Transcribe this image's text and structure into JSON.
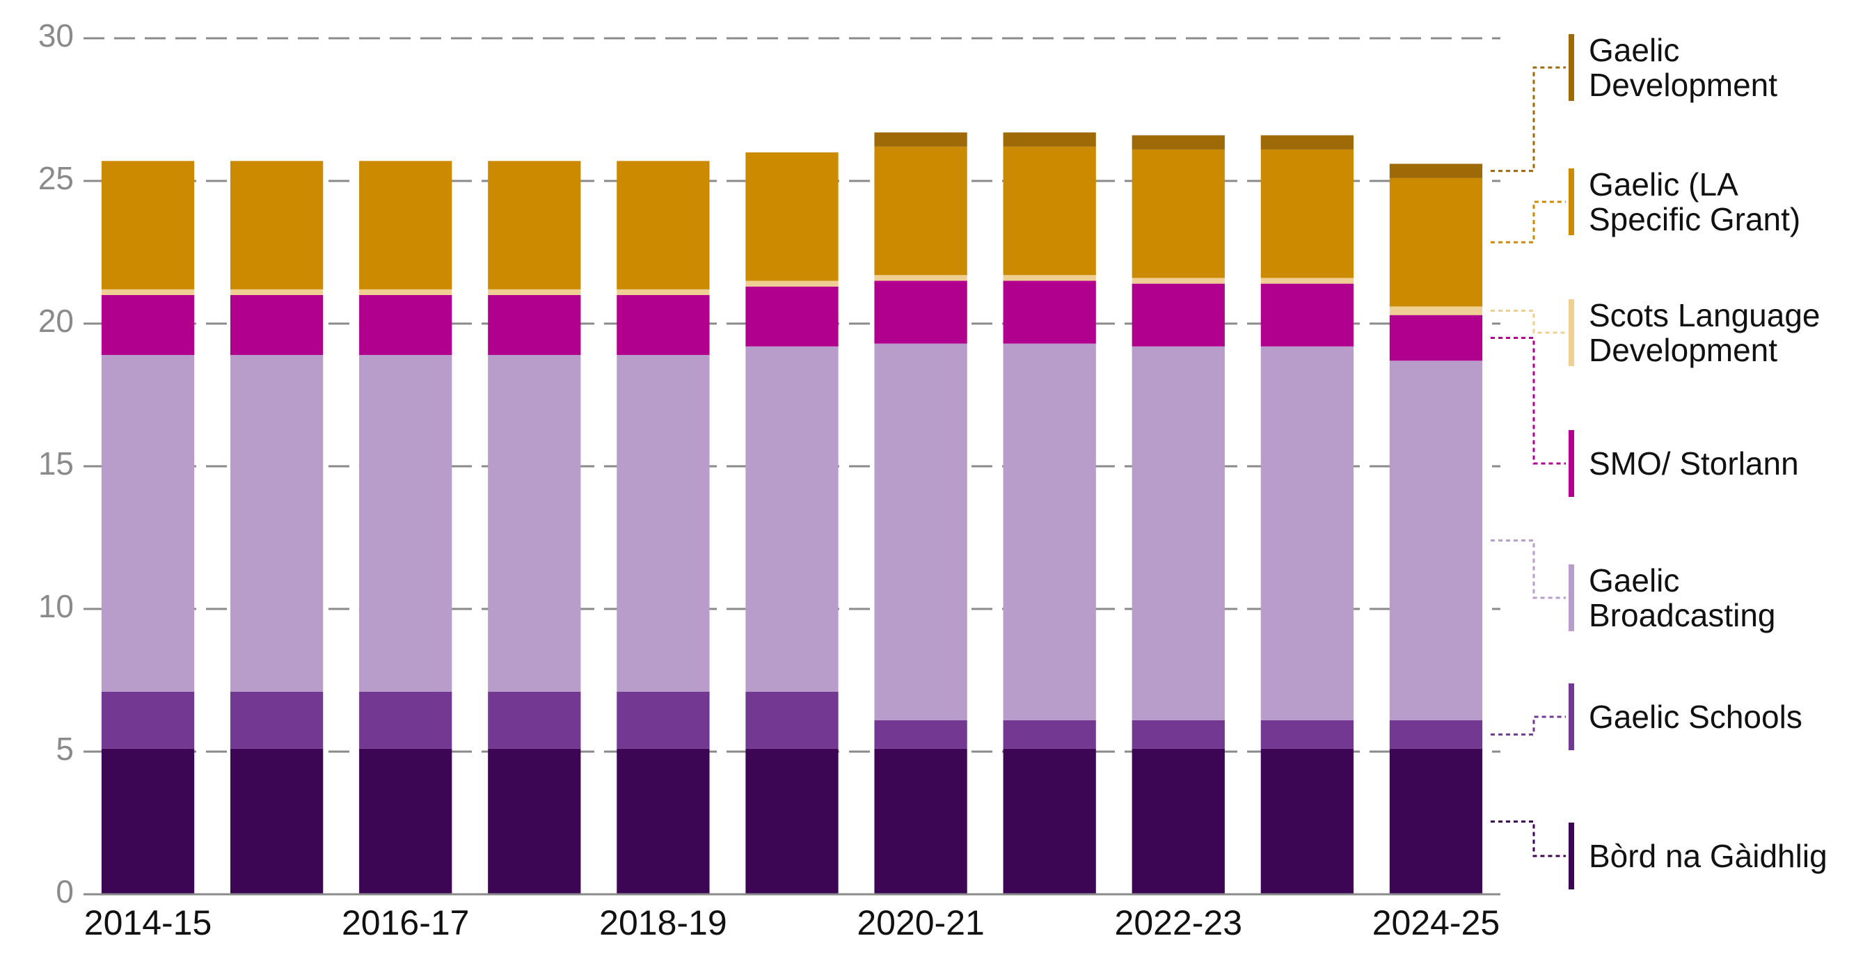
{
  "chart_data": {
    "type": "stacked-bar",
    "categories": [
      "2014-15",
      null,
      "2016-17",
      null,
      "2018-19",
      null,
      "2020-21",
      null,
      "2022-23",
      null,
      "2024-25"
    ],
    "series": [
      {
        "name": "Bòrd na Gàidhlig",
        "color": "#3d0655",
        "values": [
          5.1,
          5.1,
          5.1,
          5.1,
          5.1,
          5.1,
          5.1,
          5.1,
          5.1,
          5.1,
          5.1
        ]
      },
      {
        "name": "Gaelic Schools",
        "color": "#733891",
        "values": [
          2.0,
          2.0,
          2.0,
          2.0,
          2.0,
          2.0,
          1.0,
          1.0,
          1.0,
          1.0,
          1.0
        ]
      },
      {
        "name": "Gaelic Broadcasting",
        "color": "#b89cc9",
        "values": [
          11.8,
          11.8,
          11.8,
          11.8,
          11.8,
          12.1,
          13.2,
          13.2,
          13.1,
          13.1,
          12.6
        ]
      },
      {
        "name": "SMO/ Storlann",
        "color": "#b0008d",
        "values": [
          2.1,
          2.1,
          2.1,
          2.1,
          2.1,
          2.1,
          2.2,
          2.2,
          2.2,
          2.2,
          1.6
        ]
      },
      {
        "name": "Scots Language Development",
        "color": "#efcf93",
        "values": [
          0.2,
          0.2,
          0.2,
          0.2,
          0.2,
          0.2,
          0.2,
          0.2,
          0.2,
          0.2,
          0.3
        ]
      },
      {
        "name": "Gaelic (LA Specific Grant)",
        "color": "#cc8a00",
        "values": [
          4.5,
          4.5,
          4.5,
          4.5,
          4.5,
          4.5,
          4.5,
          4.5,
          4.5,
          4.5,
          4.5
        ]
      },
      {
        "name": "Gaelic Development",
        "color": "#9e6a08",
        "values": [
          null,
          null,
          null,
          null,
          null,
          null,
          0.5,
          0.5,
          0.5,
          0.5,
          0.5
        ]
      }
    ],
    "ylim": [
      0,
      30
    ],
    "yticks": [
      0,
      5,
      10,
      15,
      20,
      25,
      30
    ],
    "grid": true
  }
}
